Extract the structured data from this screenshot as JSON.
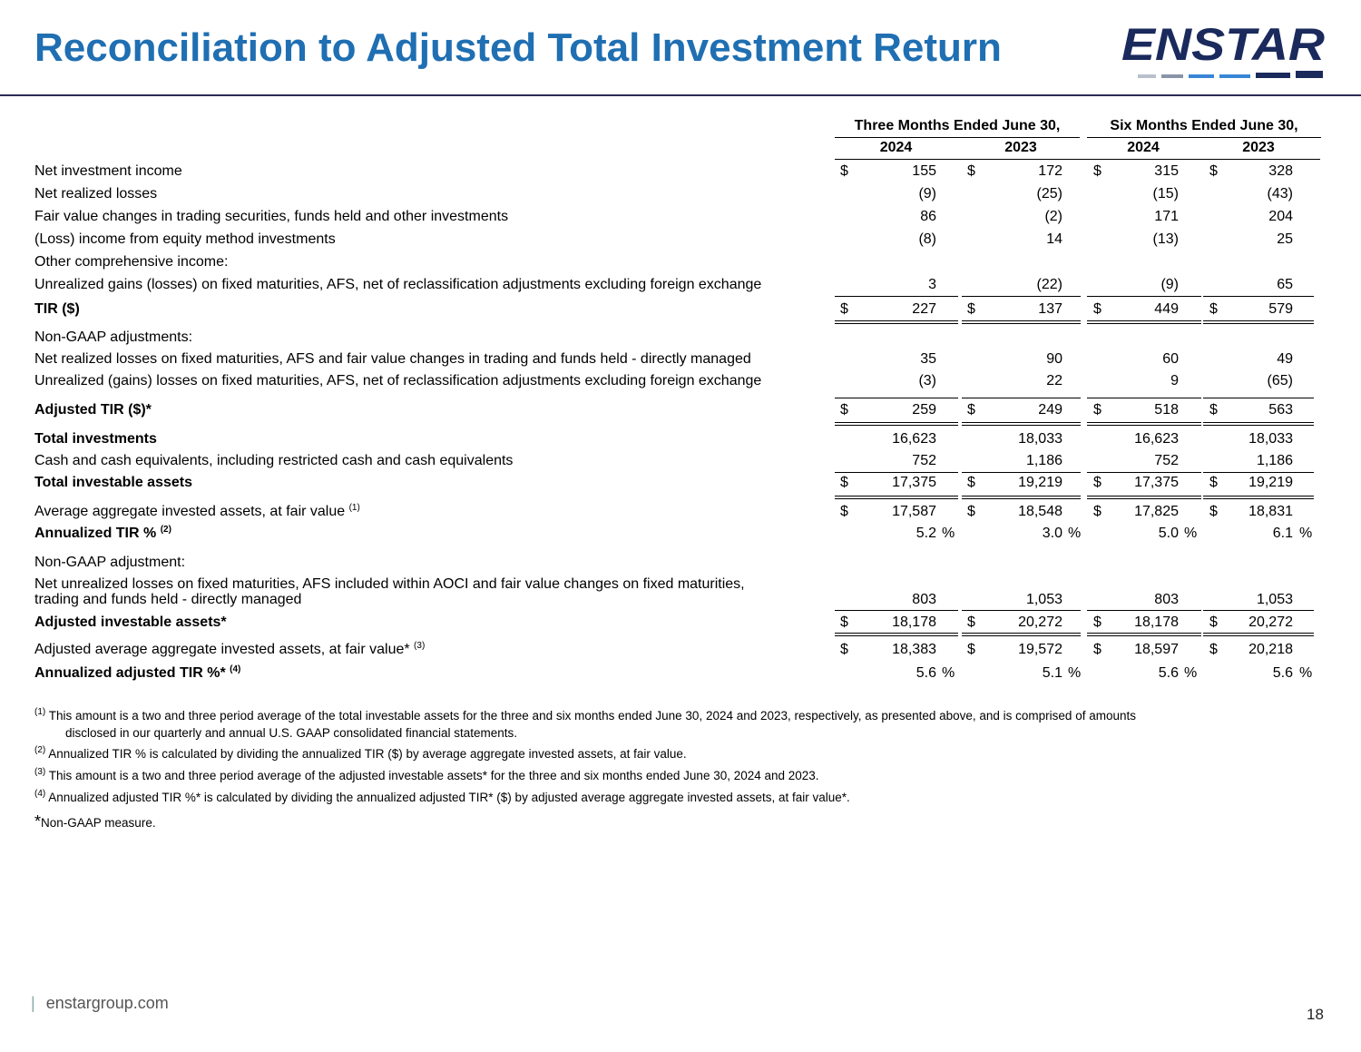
{
  "title": "Reconciliation to Adjusted Total Investment Return",
  "logo_text": "ENSTAR",
  "headers": {
    "group1": "Three Months Ended June 30,",
    "group2": "Six Months Ended June 30,",
    "years": [
      "2024",
      "2023",
      "2024",
      "2023"
    ]
  },
  "rows": [
    {
      "label": "Net investment income",
      "values": [
        "155",
        "172",
        "315",
        "328"
      ],
      "dollar": true
    },
    {
      "label": "Net realized losses",
      "values": [
        "(9)",
        "(25)",
        "(15)",
        "(43)"
      ]
    },
    {
      "label": "Fair value changes in trading securities, funds held and other investments",
      "values": [
        "86",
        "(2)",
        "171",
        "204"
      ]
    },
    {
      "label": "(Loss) income from equity method investments",
      "values": [
        "(8)",
        "14",
        "(13)",
        "25"
      ]
    },
    {
      "label": "Other comprehensive income:",
      "values": []
    },
    {
      "label": "Unrealized gains (losses) on fixed maturities, AFS, net of reclassification adjustments excluding foreign exchange",
      "values": [
        "3",
        "(22)",
        "(9)",
        "65"
      ]
    },
    {
      "label": "TIR ($)",
      "values": [
        "227",
        "137",
        "449",
        "579"
      ],
      "dollar": true,
      "bold": true
    },
    {
      "label": "Non-GAAP adjustments:",
      "values": []
    },
    {
      "label": "Net realized losses on fixed maturities, AFS and fair value changes in trading and funds held - directly managed",
      "values": [
        "35",
        "90",
        "60",
        "49"
      ]
    },
    {
      "label": "Unrealized (gains) losses on fixed maturities, AFS, net of reclassification adjustments excluding foreign exchange",
      "values": [
        "(3)",
        "22",
        "9",
        "(65)"
      ]
    },
    {
      "label": "Adjusted TIR ($)*",
      "values": [
        "259",
        "249",
        "518",
        "563"
      ],
      "dollar": true,
      "bold": true
    },
    {
      "label": "Total investments",
      "values": [
        "16,623",
        "18,033",
        "16,623",
        "18,033"
      ],
      "bold": true
    },
    {
      "label": "Cash and cash equivalents, including restricted cash and cash equivalents",
      "values": [
        "752",
        "1,186",
        "752",
        "1,186"
      ]
    },
    {
      "label": "Total investable assets",
      "values": [
        "17,375",
        "19,219",
        "17,375",
        "19,219"
      ],
      "dollar": true,
      "bold": true
    },
    {
      "label": "Average aggregate invested assets, at fair value",
      "sup": "(1)",
      "values": [
        "17,587",
        "18,548",
        "17,825",
        "18,831"
      ],
      "dollar": true
    },
    {
      "label": "Annualized TIR %",
      "sup": "(2)",
      "values": [
        "5.2",
        "3.0",
        "5.0",
        "6.1"
      ],
      "pct": true,
      "bold": true
    },
    {
      "label": "Non-GAAP adjustment:",
      "values": []
    },
    {
      "label": "Net unrealized losses on fixed maturities, AFS included within AOCI and fair value changes on fixed maturities,",
      "label2": "trading and funds held - directly managed",
      "values": [
        "803",
        "1,053",
        "803",
        "1,053"
      ]
    },
    {
      "label": "Adjusted investable assets*",
      "values": [
        "18,178",
        "20,272",
        "18,178",
        "20,272"
      ],
      "dollar": true,
      "bold": true
    },
    {
      "label": "Adjusted average aggregate invested assets, at fair value*",
      "sup": "(3)",
      "values": [
        "18,383",
        "19,572",
        "18,597",
        "20,218"
      ],
      "dollar": true
    },
    {
      "label": "Annualized adjusted TIR %*",
      "sup": "(4)",
      "values": [
        "5.6",
        "5.1",
        "5.6",
        "5.6"
      ],
      "pct": true,
      "bold": true
    }
  ],
  "symbols": {
    "dollar": "$",
    "percent": "%"
  },
  "footnotes": [
    {
      "mark": "(1)",
      "line1": "This amount is a two and three period average of the total investable assets for the three and six months ended June 30, 2024 and 2023, respectively, as presented above, and is comprised of amounts",
      "line2": "disclosed in our quarterly and annual U.S. GAAP consolidated financial statements."
    },
    {
      "mark": "(2)",
      "line1": "Annualized TIR % is calculated by dividing the annualized TIR ($) by average aggregate invested assets, at fair value."
    },
    {
      "mark": "(3)",
      "line1": " This amount is a two and three period average of the adjusted investable assets* for the three and six months ended June 30, 2024 and 2023."
    },
    {
      "mark": "(4)",
      "line1": "Annualized adjusted TIR %* is calculated by dividing the annualized adjusted TIR* ($) by adjusted average aggregate invested assets, at fair value*."
    },
    {
      "mark": "*",
      "line1": "Non-GAAP measure."
    }
  ],
  "footer": {
    "site": "enstargroup.com",
    "page": "18"
  },
  "colors": {
    "title": "#1f6fb2",
    "logo_navy": "#1b2a5c",
    "logo_blue": "#3a86d6"
  }
}
